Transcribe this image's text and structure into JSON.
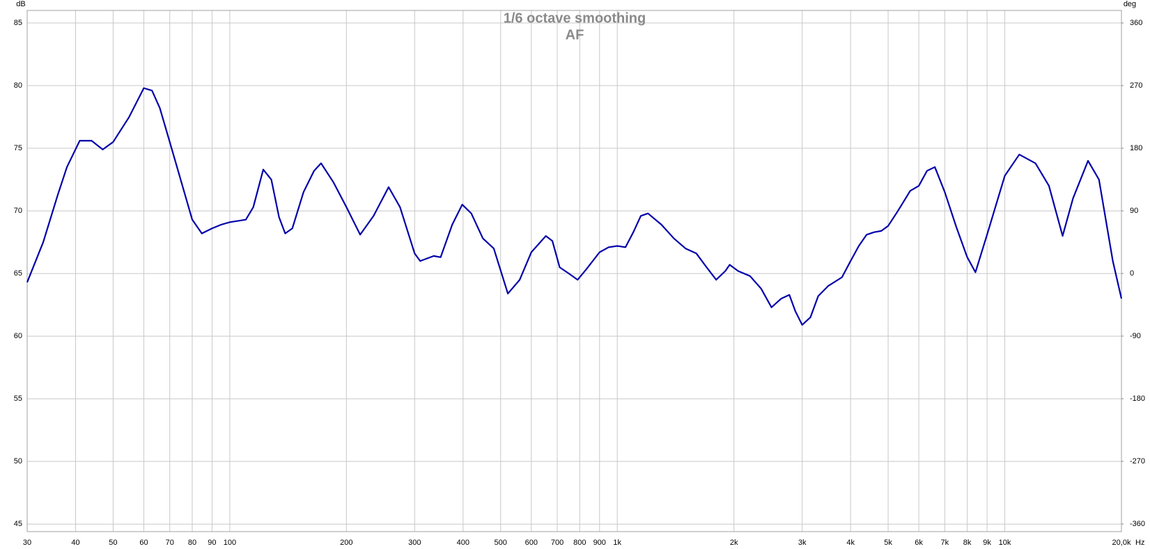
{
  "chart_data": {
    "type": "line",
    "title": "1/6 octave smoothing",
    "subtitle": "AF",
    "ylabel": "dB",
    "y2label": "deg",
    "xlabel": "Hz",
    "log_x": true,
    "grid": true,
    "xlim": [
      30,
      20000
    ],
    "ylim": [
      44.4,
      86
    ],
    "y2lim": [
      -371,
      378
    ],
    "xticks": [
      30,
      40,
      50,
      60,
      70,
      80,
      90,
      100,
      200,
      300,
      400,
      500,
      600,
      700,
      800,
      900,
      {
        "value": 1000,
        "label": "1k"
      },
      {
        "value": 2000,
        "label": "2k"
      },
      {
        "value": 3000,
        "label": "3k"
      },
      {
        "value": 4000,
        "label": "4k"
      },
      {
        "value": 5000,
        "label": "5k"
      },
      {
        "value": 6000,
        "label": "6k"
      },
      {
        "value": 7000,
        "label": "7k"
      },
      {
        "value": 8000,
        "label": "8k"
      },
      {
        "value": 9000,
        "label": "9k"
      },
      {
        "value": 10000,
        "label": "10k"
      },
      {
        "value": 20000,
        "label": "20,0k"
      }
    ],
    "yticks": [
      45,
      50,
      55,
      60,
      65,
      70,
      75,
      80,
      85
    ],
    "y2ticks": [
      -360,
      -270,
      -180,
      -90,
      0,
      90,
      180,
      270,
      360
    ],
    "x": [
      30,
      33,
      36,
      38,
      41,
      44,
      47,
      50,
      55,
      60,
      63,
      66,
      70,
      75,
      80,
      84.7,
      90,
      95,
      100,
      110,
      115,
      122,
      128,
      134,
      139,
      145,
      155,
      165,
      172,
      185,
      200,
      217,
      235,
      257,
      275,
      300,
      310,
      336,
      350,
      375,
      398,
      420,
      450,
      480,
      522,
      560,
      600,
      654,
      680,
      710,
      750,
      790,
      830,
      900,
      950,
      1000,
      1050,
      1100,
      1150,
      1200,
      1300,
      1400,
      1500,
      1600,
      1700,
      1800,
      1900,
      1950,
      2050,
      2200,
      2350,
      2500,
      2650,
      2780,
      2880,
      3000,
      3150,
      3300,
      3500,
      3800,
      4000,
      4200,
      4400,
      4600,
      4800,
      5000,
      5300,
      5700,
      6000,
      6300,
      6600,
      7000,
      7500,
      8000,
      8400,
      9000,
      10000,
      10900,
      12000,
      13000,
      14100,
      15000,
      16400,
      17500,
      19000,
      20000
    ],
    "series": [
      {
        "name": "AF",
        "color": "#0000aa",
        "values": [
          64.3,
          67.5,
          71.3,
          73.5,
          75.6,
          75.6,
          74.9,
          75.5,
          77.5,
          79.8,
          79.6,
          78.2,
          75.5,
          72.3,
          69.3,
          68.2,
          68.6,
          68.9,
          69.1,
          69.3,
          70.3,
          73.3,
          72.5,
          69.5,
          68.2,
          68.6,
          71.5,
          73.2,
          73.8,
          72.3,
          70.3,
          68.1,
          69.6,
          71.9,
          70.3,
          66.6,
          66.0,
          66.4,
          66.3,
          68.9,
          70.5,
          69.8,
          67.8,
          67.0,
          63.4,
          64.5,
          66.7,
          68.0,
          67.6,
          65.5,
          65.0,
          64.5,
          65.3,
          66.7,
          67.1,
          67.2,
          67.1,
          68.3,
          69.6,
          69.8,
          68.9,
          67.8,
          67.0,
          66.6,
          65.5,
          64.5,
          65.2,
          65.7,
          65.2,
          64.8,
          63.8,
          62.3,
          63.0,
          63.3,
          62.0,
          60.9,
          61.5,
          63.2,
          64.0,
          64.7,
          66.0,
          67.2,
          68.1,
          68.3,
          68.4,
          68.8,
          70.0,
          71.6,
          72.0,
          73.2,
          73.5,
          71.5,
          68.7,
          66.3,
          65.1,
          68.1,
          72.8,
          74.5,
          73.8,
          72.0,
          68.0,
          71.0,
          74.0,
          72.5,
          66.0,
          63.0
        ]
      }
    ]
  }
}
